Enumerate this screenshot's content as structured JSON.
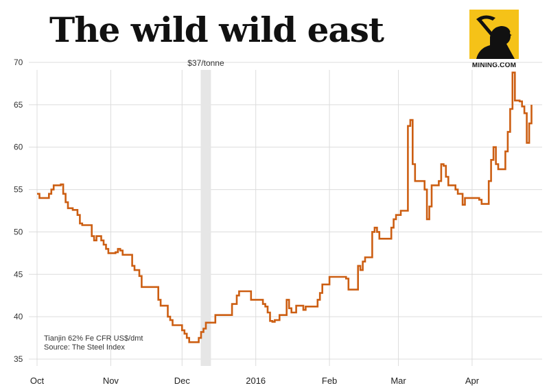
{
  "header": {
    "title": "The wild wild east",
    "logo_text": "MINING.COM",
    "logo_icon": "miner-pickaxe-icon",
    "logo_color": "#f5c218"
  },
  "annotation": {
    "text": "$37/tonne"
  },
  "source": {
    "line1": "Tianjin 62% Fe CFR US$/dmt",
    "line2": "Source: The Steel Index"
  },
  "chart_data": {
    "type": "line",
    "title": "The wild wild east",
    "xlabel": "",
    "ylabel": "",
    "ylim": [
      35,
      70
    ],
    "yticks": [
      35,
      40,
      45,
      50,
      55,
      60,
      65,
      70
    ],
    "xlim": [
      "2015-10-01",
      "2016-04-27"
    ],
    "xticks": [
      {
        "date": "2015-10-01",
        "label": "Oct"
      },
      {
        "date": "2015-11-01",
        "label": "Nov"
      },
      {
        "date": "2015-12-01",
        "label": "Dec"
      },
      {
        "date": "2016-01-01",
        "label": "2016"
      },
      {
        "date": "2016-02-01",
        "label": "Feb"
      },
      {
        "date": "2016-03-01",
        "label": "Mar"
      },
      {
        "date": "2016-04-01",
        "label": "Apr"
      }
    ],
    "highlight_band": {
      "start": "2015-12-10",
      "end": "2015-12-12",
      "label": "$37/tonne"
    },
    "grid": true,
    "line_color": "#cc5e12",
    "series": [
      {
        "name": "",
        "points": [
          [
            "2015-10-01",
            54.5
          ],
          [
            "2015-10-02",
            54.0
          ],
          [
            "2015-10-05",
            54.0
          ],
          [
            "2015-10-06",
            54.5
          ],
          [
            "2015-10-07",
            55.0
          ],
          [
            "2015-10-08",
            55.5
          ],
          [
            "2015-10-11",
            55.6
          ],
          [
            "2015-10-12",
            54.5
          ],
          [
            "2015-10-13",
            53.5
          ],
          [
            "2015-10-14",
            52.8
          ],
          [
            "2015-10-16",
            52.6
          ],
          [
            "2015-10-18",
            52.0
          ],
          [
            "2015-10-19",
            51.0
          ],
          [
            "2015-10-20",
            50.8
          ],
          [
            "2015-10-23",
            50.8
          ],
          [
            "2015-10-24",
            49.5
          ],
          [
            "2015-10-25",
            49.0
          ],
          [
            "2015-10-26",
            49.5
          ],
          [
            "2015-10-28",
            49.0
          ],
          [
            "2015-10-29",
            48.5
          ],
          [
            "2015-10-30",
            48.0
          ],
          [
            "2015-10-31",
            47.5
          ],
          [
            "2015-11-03",
            47.6
          ],
          [
            "2015-11-04",
            48.0
          ],
          [
            "2015-11-05",
            47.8
          ],
          [
            "2015-11-06",
            47.3
          ],
          [
            "2015-11-09",
            47.3
          ],
          [
            "2015-11-10",
            46.0
          ],
          [
            "2015-11-11",
            45.5
          ],
          [
            "2015-11-13",
            44.8
          ],
          [
            "2015-11-14",
            43.5
          ],
          [
            "2015-11-16",
            43.5
          ],
          [
            "2015-11-20",
            43.5
          ],
          [
            "2015-11-21",
            42.0
          ],
          [
            "2015-11-22",
            41.3
          ],
          [
            "2015-11-24",
            41.3
          ],
          [
            "2015-11-25",
            40.0
          ],
          [
            "2015-11-26",
            39.6
          ],
          [
            "2015-11-27",
            39.0
          ],
          [
            "2015-11-30",
            39.0
          ],
          [
            "2015-12-01",
            38.4
          ],
          [
            "2015-12-02",
            38.0
          ],
          [
            "2015-12-03",
            37.5
          ],
          [
            "2015-12-04",
            37.0
          ],
          [
            "2015-12-07",
            37.0
          ],
          [
            "2015-12-08",
            37.5
          ],
          [
            "2015-12-09",
            38.2
          ],
          [
            "2015-12-10",
            38.6
          ],
          [
            "2015-12-11",
            39.3
          ],
          [
            "2015-12-14",
            39.3
          ],
          [
            "2015-12-15",
            40.2
          ],
          [
            "2015-12-18",
            40.2
          ],
          [
            "2015-12-21",
            40.2
          ],
          [
            "2015-12-22",
            41.5
          ],
          [
            "2015-12-24",
            42.5
          ],
          [
            "2015-12-25",
            43.0
          ],
          [
            "2015-12-29",
            43.0
          ],
          [
            "2015-12-30",
            42.0
          ],
          [
            "2016-01-04",
            41.5
          ],
          [
            "2016-01-05",
            41.2
          ],
          [
            "2016-01-06",
            40.5
          ],
          [
            "2016-01-07",
            39.5
          ],
          [
            "2016-01-08",
            39.4
          ],
          [
            "2016-01-09",
            39.6
          ],
          [
            "2016-01-11",
            40.2
          ],
          [
            "2016-01-13",
            40.2
          ],
          [
            "2016-01-14",
            42.0
          ],
          [
            "2016-01-15",
            41.0
          ],
          [
            "2016-01-16",
            40.5
          ],
          [
            "2016-01-18",
            41.3
          ],
          [
            "2016-01-20",
            41.3
          ],
          [
            "2016-01-21",
            40.8
          ],
          [
            "2016-01-22",
            41.2
          ],
          [
            "2016-01-26",
            41.2
          ],
          [
            "2016-01-27",
            42.0
          ],
          [
            "2016-01-28",
            42.8
          ],
          [
            "2016-01-29",
            43.8
          ],
          [
            "2016-02-01",
            44.7
          ],
          [
            "2016-02-05",
            44.7
          ],
          [
            "2016-02-08",
            44.5
          ],
          [
            "2016-02-09",
            43.2
          ],
          [
            "2016-02-12",
            43.2
          ],
          [
            "2016-02-13",
            46.0
          ],
          [
            "2016-02-14",
            45.5
          ],
          [
            "2016-02-15",
            46.5
          ],
          [
            "2016-02-16",
            47.0
          ],
          [
            "2016-02-18",
            47.0
          ],
          [
            "2016-02-19",
            50.0
          ],
          [
            "2016-02-20",
            50.5
          ],
          [
            "2016-02-21",
            50.0
          ],
          [
            "2016-02-22",
            49.2
          ],
          [
            "2016-02-26",
            49.2
          ],
          [
            "2016-02-27",
            50.5
          ],
          [
            "2016-02-28",
            51.5
          ],
          [
            "2016-02-29",
            52.0
          ],
          [
            "2016-03-02",
            52.5
          ],
          [
            "2016-03-04",
            52.5
          ],
          [
            "2016-03-05",
            62.5
          ],
          [
            "2016-03-06",
            63.2
          ],
          [
            "2016-03-07",
            58.0
          ],
          [
            "2016-03-08",
            56.0
          ],
          [
            "2016-03-11",
            56.0
          ],
          [
            "2016-03-12",
            55.0
          ],
          [
            "2016-03-13",
            51.5
          ],
          [
            "2016-03-14",
            53.0
          ],
          [
            "2016-03-15",
            55.5
          ],
          [
            "2016-03-17",
            55.5
          ],
          [
            "2016-03-18",
            56.0
          ],
          [
            "2016-03-19",
            58.0
          ],
          [
            "2016-03-20",
            57.8
          ],
          [
            "2016-03-21",
            56.5
          ],
          [
            "2016-03-22",
            55.5
          ],
          [
            "2016-03-25",
            55.0
          ],
          [
            "2016-03-26",
            54.5
          ],
          [
            "2016-03-28",
            53.2
          ],
          [
            "2016-03-29",
            54.0
          ],
          [
            "2016-04-01",
            54.0
          ],
          [
            "2016-04-04",
            53.8
          ],
          [
            "2016-04-05",
            53.3
          ],
          [
            "2016-04-07",
            53.3
          ],
          [
            "2016-04-08",
            56.0
          ],
          [
            "2016-04-09",
            58.5
          ],
          [
            "2016-04-10",
            60.0
          ],
          [
            "2016-04-11",
            58.0
          ],
          [
            "2016-04-12",
            57.4
          ],
          [
            "2016-04-14",
            57.4
          ],
          [
            "2016-04-15",
            59.5
          ],
          [
            "2016-04-16",
            61.8
          ],
          [
            "2016-04-17",
            64.5
          ],
          [
            "2016-04-18",
            68.8
          ],
          [
            "2016-04-19",
            65.5
          ],
          [
            "2016-04-21",
            65.4
          ],
          [
            "2016-04-22",
            64.8
          ],
          [
            "2016-04-23",
            64.0
          ],
          [
            "2016-04-24",
            60.5
          ],
          [
            "2016-04-25",
            62.8
          ],
          [
            "2016-04-26",
            65.0
          ]
        ]
      }
    ]
  }
}
